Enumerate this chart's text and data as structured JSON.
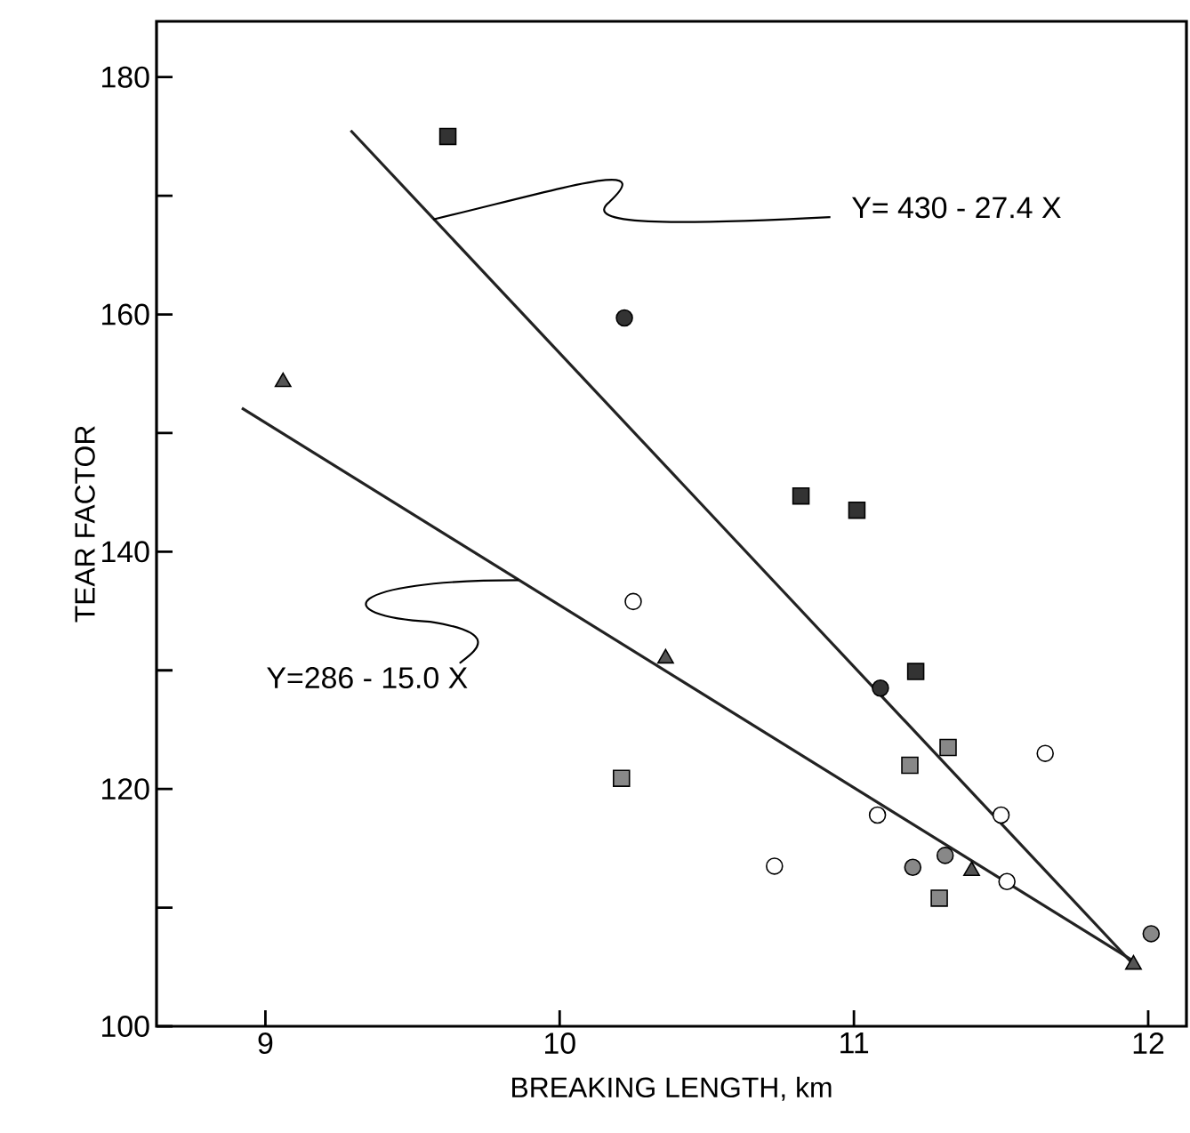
{
  "chart_data": {
    "type": "scatter",
    "xlabel": "BREAKING LENGTH, km",
    "ylabel": "TEAR FACTOR",
    "xlim": [
      8.63,
      12.13
    ],
    "ylim": [
      100,
      184.7
    ],
    "xticks": [
      9,
      10,
      11,
      12
    ],
    "yticks": [
      100,
      {
        "value": 110,
        "label": null
      },
      120,
      {
        "value": 130,
        "label": null
      },
      140,
      {
        "value": 150,
        "label": null
      },
      160,
      {
        "value": 170,
        "label": null
      },
      180
    ],
    "series": [
      {
        "marker": "square",
        "color": "#333333",
        "x": [
          9.62,
          10.82,
          11.01,
          11.21
        ],
        "values": [
          175,
          144.7,
          143.5,
          129.9
        ]
      },
      {
        "marker": "circle",
        "color": "#333333",
        "x": [
          10.22,
          11.09
        ],
        "values": [
          159.7,
          128.5
        ]
      },
      {
        "marker": "triangle",
        "color": "#555555",
        "x": [
          9.06,
          10.36,
          11.4,
          11.95
        ],
        "values": [
          154.3,
          131,
          113.1,
          105.2
        ]
      },
      {
        "marker": "circle",
        "color": "#ffffff",
        "x": [
          10.25,
          11.65,
          11.08,
          11.5,
          10.73,
          11.52
        ],
        "values": [
          135.8,
          123,
          117.8,
          117.8,
          113.5,
          112.2
        ]
      },
      {
        "marker": "square",
        "color": "#888888",
        "x": [
          10.21,
          11.32,
          11.19,
          11.29
        ],
        "values": [
          120.9,
          123.5,
          122,
          110.8
        ]
      },
      {
        "marker": "circle",
        "color": "#888888",
        "x": [
          11.31,
          11.2,
          12.01
        ],
        "values": [
          114.4,
          113.4,
          107.8
        ]
      },
      {
        "type": "line",
        "color": "#222222",
        "x": [
          9.29,
          11.95
        ],
        "values": [
          175.5,
          105.2
        ]
      },
      {
        "type": "line",
        "color": "#222222",
        "x": [
          8.92,
          11.95
        ],
        "values": [
          152.1,
          105.5
        ]
      }
    ],
    "annotations": [
      {
        "text": "Y= 430 - 27.4 X",
        "x": 9.57,
        "y": 168
      },
      {
        "text": "Y=286 - 15.0 X",
        "x": 9.86,
        "y": 137.6
      }
    ]
  }
}
